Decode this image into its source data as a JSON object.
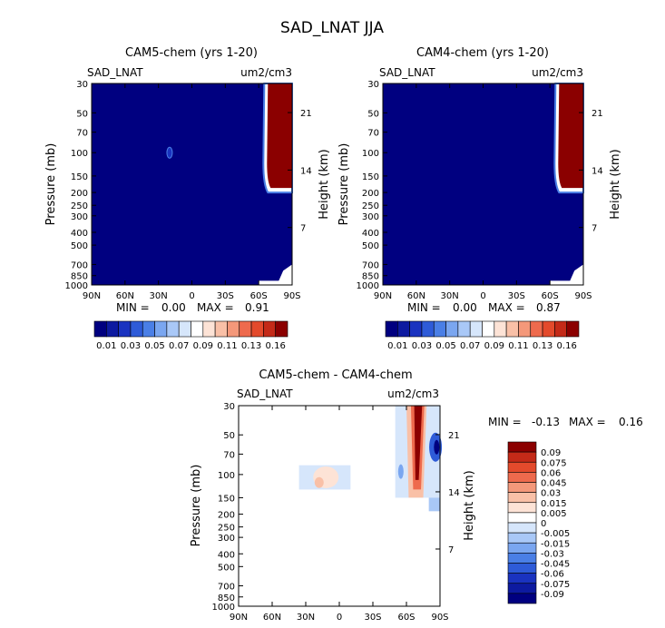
{
  "figure": {
    "title": "SAD_LNAT JJA"
  },
  "chart_data": [
    {
      "type": "heatmap",
      "title": "CAM5-chem (yrs 1-20)",
      "field_label": "SAD_LNAT",
      "units": "um2/cm3",
      "ylabel": "Pressure (mb)",
      "ylabel_right": "Height (km)",
      "xticks": [
        "90N",
        "60N",
        "30N",
        "0",
        "30S",
        "60S",
        "90S"
      ],
      "xlim": [
        -90,
        90
      ],
      "yticks": [
        "30",
        "50",
        "70",
        "100",
        "150",
        "200",
        "250",
        "300",
        "400",
        "500",
        "700",
        "850",
        "1000"
      ],
      "ylim_mb": [
        1000,
        30
      ],
      "right_ticks": [
        "21",
        "14",
        "7"
      ],
      "stats": {
        "min_label": "MIN =",
        "min": "0.00",
        "max_label": "MAX =",
        "max": "0.91"
      },
      "colorbar": {
        "orientation": "horizontal",
        "labels": [
          "0.01",
          "0.03",
          "0.05",
          "0.07",
          "0.09",
          "0.11",
          "0.13",
          "0.16"
        ],
        "colors": [
          "#000080",
          "#0d1aa0",
          "#1a33c0",
          "#2e5bd8",
          "#4a7fe6",
          "#7aa6f0",
          "#a9c8f7",
          "#d6e6fb",
          "#ffffff",
          "#fde3d6",
          "#f9c0a7",
          "#f4987a",
          "#ee6a4d",
          "#e34a2c",
          "#c42a18",
          "#8b0000"
        ]
      },
      "polar_onset_lat": -65,
      "polar_value": 0.91
    },
    {
      "type": "heatmap",
      "title": "CAM4-chem (yrs 1-20)",
      "field_label": "SAD_LNAT",
      "units": "um2/cm3",
      "ylabel": "Pressure (mb)",
      "ylabel_right": "Height (km)",
      "xticks": [
        "90N",
        "60N",
        "30N",
        "0",
        "30S",
        "60S",
        "90S"
      ],
      "xlim": [
        -90,
        90
      ],
      "yticks": [
        "30",
        "50",
        "70",
        "100",
        "150",
        "200",
        "250",
        "300",
        "400",
        "500",
        "700",
        "850",
        "1000"
      ],
      "ylim_mb": [
        1000,
        30
      ],
      "right_ticks": [
        "21",
        "14",
        "7"
      ],
      "stats": {
        "min_label": "MIN =",
        "min": "0.00",
        "max_label": "MAX =",
        "max": "0.87"
      },
      "colorbar": {
        "orientation": "horizontal",
        "labels": [
          "0.01",
          "0.03",
          "0.05",
          "0.07",
          "0.09",
          "0.11",
          "0.13",
          "0.16"
        ],
        "colors": [
          "#000080",
          "#0d1aa0",
          "#1a33c0",
          "#2e5bd8",
          "#4a7fe6",
          "#7aa6f0",
          "#a9c8f7",
          "#d6e6fb",
          "#ffffff",
          "#fde3d6",
          "#f9c0a7",
          "#f4987a",
          "#ee6a4d",
          "#e34a2c",
          "#c42a18",
          "#8b0000"
        ]
      },
      "polar_onset_lat": -65,
      "polar_value": 0.87
    },
    {
      "type": "heatmap",
      "title": "CAM5-chem - CAM4-chem",
      "field_label": "SAD_LNAT",
      "units": "um2/cm3",
      "ylabel": "Pressure (mb)",
      "ylabel_right": "Height (km)",
      "xticks": [
        "90N",
        "60N",
        "30N",
        "0",
        "30S",
        "60S",
        "90S"
      ],
      "xlim": [
        -90,
        90
      ],
      "yticks": [
        "30",
        "50",
        "70",
        "100",
        "150",
        "200",
        "250",
        "300",
        "400",
        "500",
        "700",
        "850",
        "1000"
      ],
      "ylim_mb": [
        1000,
        30
      ],
      "right_ticks": [
        "21",
        "14",
        "7"
      ],
      "stats": {
        "min_label": "MIN =",
        "min": "-0.13",
        "max_label": "MAX =",
        "max": "0.16"
      },
      "colorbar": {
        "orientation": "vertical",
        "labels": [
          "0.09",
          "0.075",
          "0.06",
          "0.045",
          "0.03",
          "0.015",
          "0.005",
          "0",
          "-0.005",
          "-0.015",
          "-0.03",
          "-0.045",
          "-0.06",
          "-0.075",
          "-0.09"
        ],
        "colors": [
          "#8b0000",
          "#c42a18",
          "#e34a2c",
          "#ee6a4d",
          "#f4987a",
          "#f9c0a7",
          "#fde3d6",
          "#ffffff",
          "#d6e6fb",
          "#a9c8f7",
          "#7aa6f0",
          "#4a7fe6",
          "#2e5bd8",
          "#1a33c0",
          "#0d1aa0",
          "#000080"
        ]
      }
    }
  ]
}
